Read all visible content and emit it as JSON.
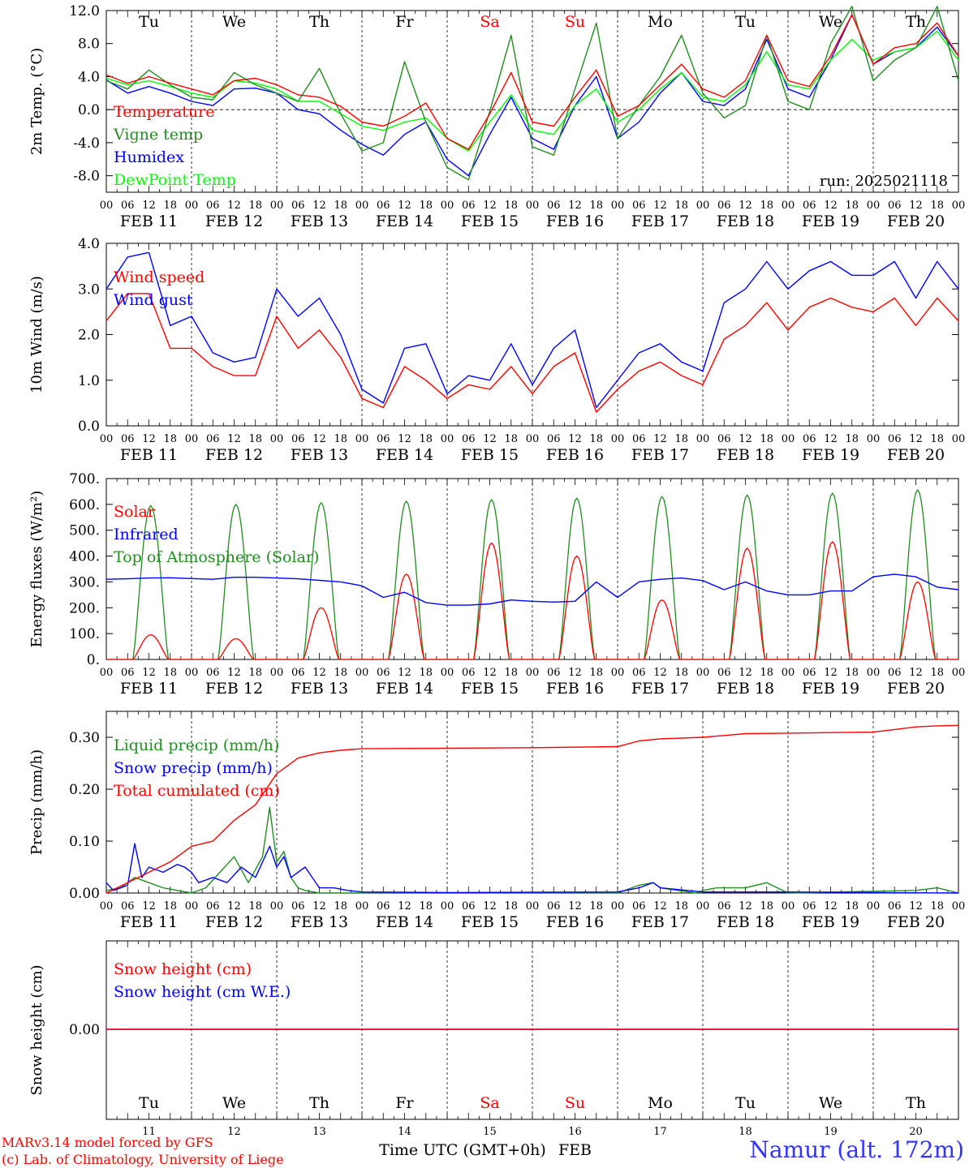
{
  "footer": {
    "model_line": "MARv3.14 model forced by GFS",
    "credit_line": "(c) Lab. of Climatology, University of Liege",
    "time_axis_label": "Time UTC (GMT+0h)",
    "month_label": "FEB",
    "station": "Namur (alt. 172m)"
  },
  "colors": {
    "red": "#ff0000",
    "darkgreen": "#228b22",
    "blue": "#0000ff",
    "lightgreen": "#00ff00",
    "weekend": "#ff0000",
    "text": "#000000",
    "station": "#3333ff"
  },
  "days": {
    "weekday_labels": [
      "Tu",
      "We",
      "Th",
      "Fr",
      "Sa",
      "Su",
      "Mo",
      "Tu",
      "We",
      "Th"
    ],
    "weekend_days": [
      "Sa",
      "Su"
    ],
    "date_labels": [
      "FEB 11",
      "FEB 12",
      "FEB 13",
      "FEB 14",
      "FEB 15",
      "FEB 16",
      "FEB 17",
      "FEB 18",
      "FEB 19",
      "FEB 20"
    ],
    "day_numbers": [
      "11",
      "12",
      "13",
      "14",
      "15",
      "16",
      "17",
      "18",
      "19",
      "20"
    ],
    "hour_ticks": [
      "00",
      "06",
      "12",
      "18"
    ],
    "final_hour_tick": "00"
  },
  "chart_data": [
    {
      "type": "line",
      "ylabel": "2m Temp. (°C)",
      "ylim": [
        -10,
        12
      ],
      "yticks": [
        "12.0",
        "8.0",
        "4.0",
        "0.0",
        "-4.0",
        "-8.0"
      ],
      "x_unit": "hours since 2025-02-11 00 UTC",
      "zero_line": true,
      "annotation": "run: 2025021118",
      "grid": false,
      "legend_position": "left",
      "series": [
        {
          "name": "Temperature",
          "color": "red",
          "x": [
            0,
            6,
            12,
            18,
            24,
            30,
            36,
            42,
            48,
            54,
            60,
            66,
            72,
            78,
            84,
            90,
            96,
            102,
            108,
            114,
            120,
            126,
            132,
            138,
            144,
            150,
            156,
            162,
            168,
            174,
            180,
            186,
            192,
            198,
            204,
            210,
            216,
            222,
            228,
            234,
            240
          ],
          "values": [
            4.2,
            3.2,
            4.0,
            3.2,
            2.5,
            1.8,
            3.5,
            3.8,
            3.0,
            1.8,
            1.5,
            0.4,
            -1.5,
            -2.0,
            -0.8,
            0.8,
            -3.5,
            -4.8,
            -0.5,
            4.5,
            -1.5,
            -2.0,
            1.5,
            4.8,
            -0.8,
            0.5,
            3.0,
            5.5,
            2.5,
            1.5,
            3.5,
            9.0,
            3.5,
            2.8,
            6.5,
            11.5,
            5.5,
            7.5,
            8.0,
            10.5,
            6.5
          ]
        },
        {
          "name": "Vigne temp",
          "color": "darkgreen",
          "x": [
            0,
            6,
            12,
            18,
            24,
            30,
            36,
            42,
            48,
            54,
            60,
            66,
            72,
            78,
            84,
            90,
            96,
            102,
            108,
            114,
            120,
            126,
            132,
            138,
            144,
            150,
            156,
            162,
            168,
            174,
            180,
            186,
            192,
            198,
            204,
            210,
            216,
            222,
            228,
            234,
            240
          ],
          "values": [
            3.5,
            2.5,
            4.8,
            3.0,
            1.5,
            1.2,
            4.5,
            3.0,
            2.0,
            1.0,
            5.0,
            -0.5,
            -5.0,
            -4.0,
            5.8,
            -1.5,
            -7.0,
            -8.5,
            -0.2,
            9.0,
            -4.5,
            -5.5,
            2.5,
            10.5,
            -3.5,
            0.5,
            4.0,
            9.0,
            2.0,
            -1.0,
            0.5,
            9.0,
            1.0,
            0.0,
            8.0,
            12.5,
            3.5,
            6.0,
            7.5,
            12.5,
            3.5
          ]
        },
        {
          "name": "Humidex",
          "color": "blue",
          "x": [
            0,
            6,
            12,
            18,
            24,
            30,
            36,
            42,
            48,
            54,
            60,
            66,
            72,
            78,
            84,
            90,
            96,
            102,
            108,
            114,
            120,
            126,
            132,
            138,
            144,
            150,
            156,
            162,
            168,
            174,
            180,
            186,
            192,
            198,
            204,
            210,
            216,
            222,
            228,
            234,
            240
          ],
          "values": [
            3.6,
            2.0,
            2.8,
            2.0,
            1.0,
            0.5,
            2.5,
            2.6,
            2.0,
            0.0,
            -0.5,
            -2.5,
            -4.2,
            -5.5,
            -3.0,
            -1.5,
            -6.0,
            -8.0,
            -3.0,
            1.5,
            -3.5,
            -4.8,
            0.5,
            4.0,
            -3.5,
            -1.5,
            2.0,
            4.5,
            1.0,
            0.5,
            2.5,
            8.5,
            2.5,
            1.5,
            6.0,
            11.5,
            5.5,
            7.0,
            7.5,
            10.0,
            6.5
          ]
        },
        {
          "name": "DewPoint Temp",
          "color": "lightgreen",
          "x": [
            0,
            6,
            12,
            18,
            24,
            30,
            36,
            42,
            48,
            54,
            60,
            66,
            72,
            78,
            84,
            90,
            96,
            102,
            108,
            114,
            120,
            126,
            132,
            138,
            144,
            150,
            156,
            162,
            168,
            174,
            180,
            186,
            192,
            198,
            204,
            210,
            216,
            222,
            228,
            234,
            240
          ],
          "values": [
            3.8,
            3.0,
            3.5,
            2.8,
            2.0,
            1.5,
            3.5,
            3.2,
            2.5,
            1.0,
            1.0,
            -0.5,
            -2.0,
            -2.5,
            -1.5,
            -1.0,
            -3.5,
            -5.0,
            -1.5,
            1.8,
            -2.5,
            -3.0,
            0.5,
            2.5,
            -1.5,
            0.0,
            2.5,
            4.5,
            1.5,
            1.0,
            3.0,
            7.0,
            3.0,
            2.5,
            6.0,
            8.5,
            6.0,
            7.0,
            7.5,
            9.5,
            6.0
          ]
        }
      ]
    },
    {
      "type": "line",
      "ylabel": "10m Wind (m/s)",
      "ylim": [
        0,
        4
      ],
      "yticks": [
        "4.0",
        "3.0",
        "2.0",
        "1.0",
        "0.0"
      ],
      "x_unit": "hours since 2025-02-11 00 UTC",
      "grid": false,
      "legend_position": "left",
      "series": [
        {
          "name": "Wind speed",
          "color": "red",
          "x": [
            0,
            6,
            12,
            18,
            24,
            30,
            36,
            42,
            48,
            54,
            60,
            66,
            72,
            78,
            84,
            90,
            96,
            102,
            108,
            114,
            120,
            126,
            132,
            138,
            144,
            150,
            156,
            162,
            168,
            174,
            180,
            186,
            192,
            198,
            204,
            210,
            216,
            222,
            228,
            234,
            240
          ],
          "values": [
            2.3,
            2.9,
            2.9,
            1.7,
            1.7,
            1.3,
            1.1,
            1.1,
            2.4,
            1.7,
            2.1,
            1.5,
            0.6,
            0.4,
            1.3,
            1.0,
            0.6,
            0.9,
            0.8,
            1.3,
            0.7,
            1.3,
            1.6,
            0.3,
            0.8,
            1.2,
            1.4,
            1.1,
            0.9,
            1.9,
            2.2,
            2.7,
            2.1,
            2.6,
            2.8,
            2.6,
            2.5,
            2.8,
            2.2,
            2.8,
            2.3
          ]
        },
        {
          "name": "Wind gust",
          "color": "blue",
          "x": [
            0,
            6,
            12,
            18,
            24,
            30,
            36,
            42,
            48,
            54,
            60,
            66,
            72,
            78,
            84,
            90,
            96,
            102,
            108,
            114,
            120,
            126,
            132,
            138,
            144,
            150,
            156,
            162,
            168,
            174,
            180,
            186,
            192,
            198,
            204,
            210,
            216,
            222,
            228,
            234,
            240
          ],
          "values": [
            3.0,
            3.7,
            3.8,
            2.2,
            2.4,
            1.6,
            1.4,
            1.5,
            3.0,
            2.4,
            2.8,
            2.0,
            0.8,
            0.5,
            1.7,
            1.8,
            0.7,
            1.1,
            1.0,
            1.8,
            0.9,
            1.7,
            2.1,
            0.4,
            1.0,
            1.6,
            1.8,
            1.4,
            1.2,
            2.7,
            3.0,
            3.6,
            3.0,
            3.4,
            3.6,
            3.3,
            3.3,
            3.6,
            2.8,
            3.6,
            3.0
          ]
        }
      ]
    },
    {
      "type": "line",
      "ylabel": "Energy fluxes (W/m²)",
      "ylim": [
        0,
        700
      ],
      "yticks": [
        "700.",
        "600.",
        "500.",
        "400.",
        "300.",
        "200.",
        "100.",
        "0."
      ],
      "x_unit": "hours since 2025-02-11 00 UTC",
      "grid": false,
      "legend_position": "left",
      "solar_model": {
        "sunrise_hour": 7.5,
        "sunset_hour": 17.5,
        "toa_peak_by_day": [
          595,
          600,
          606,
          612,
          618,
          624,
          630,
          636,
          643,
          656
        ],
        "solar_peak_by_day": [
          95,
          80,
          200,
          330,
          450,
          400,
          230,
          430,
          455,
          300
        ]
      },
      "series": [
        {
          "name": "Solar",
          "color": "red",
          "derived_from": "solar_model.solar_peak_by_day"
        },
        {
          "name": "Infrared",
          "color": "blue",
          "x": [
            0,
            6,
            12,
            18,
            24,
            30,
            36,
            42,
            48,
            54,
            60,
            66,
            72,
            78,
            84,
            90,
            96,
            102,
            108,
            114,
            120,
            126,
            132,
            138,
            144,
            150,
            156,
            162,
            168,
            174,
            180,
            186,
            192,
            198,
            204,
            210,
            216,
            222,
            228,
            234,
            240
          ],
          "values": [
            310,
            312,
            315,
            316,
            313,
            310,
            318,
            318,
            315,
            312,
            306,
            300,
            285,
            240,
            260,
            220,
            210,
            210,
            215,
            230,
            225,
            222,
            225,
            300,
            240,
            300,
            310,
            315,
            305,
            270,
            300,
            265,
            250,
            250,
            265,
            265,
            320,
            330,
            320,
            280,
            270
          ]
        },
        {
          "name": "Top of Atmosphere (Solar)",
          "color": "darkgreen",
          "derived_from": "solar_model.toa_peak_by_day"
        }
      ]
    },
    {
      "type": "line",
      "ylabel": "Precip (mm/h)",
      "ylim": [
        0,
        0.35
      ],
      "yticks": [
        "0.30",
        "0.20",
        "0.10",
        "0.00"
      ],
      "x_unit": "hours since 2025-02-11 00 UTC",
      "grid": false,
      "legend_position": "left",
      "series": [
        {
          "name": "Liquid precip (mm/h)",
          "color": "darkgreen",
          "x": [
            0,
            4,
            8,
            12,
            16,
            20,
            24,
            28,
            32,
            36,
            40,
            44,
            46,
            48,
            50,
            52,
            54,
            56,
            60,
            64,
            68,
            72,
            96,
            144,
            150,
            154,
            156,
            166,
            168,
            172,
            180,
            186,
            192,
            228,
            234,
            240
          ],
          "values": [
            0.005,
            0.01,
            0.03,
            0.02,
            0.01,
            0.005,
            0.0,
            0.01,
            0.04,
            0.07,
            0.02,
            0.07,
            0.165,
            0.06,
            0.08,
            0.03,
            0.01,
            0.005,
            0.0,
            0.0,
            0.0,
            0.0,
            0.0,
            0.0,
            0.015,
            0.02,
            0.01,
            0.0,
            0.005,
            0.01,
            0.01,
            0.02,
            0.0,
            0.005,
            0.01,
            0.0
          ]
        },
        {
          "name": "Snow precip (mm/h)",
          "color": "blue",
          "x": [
            0,
            2,
            6,
            8,
            10,
            12,
            16,
            20,
            22,
            24,
            26,
            30,
            34,
            38,
            42,
            46,
            48,
            50,
            52,
            56,
            60,
            64,
            68,
            72,
            96,
            144,
            150,
            154,
            156,
            168,
            180,
            192,
            240
          ],
          "values": [
            0.02,
            0.005,
            0.015,
            0.095,
            0.03,
            0.05,
            0.04,
            0.055,
            0.05,
            0.04,
            0.02,
            0.03,
            0.02,
            0.05,
            0.03,
            0.09,
            0.05,
            0.07,
            0.03,
            0.05,
            0.01,
            0.01,
            0.005,
            0.002,
            0.001,
            0.002,
            0.01,
            0.02,
            0.01,
            0.002,
            0.002,
            0.002,
            0.0
          ]
        },
        {
          "name": "Total cumulated (cm)",
          "color": "red",
          "x": [
            0,
            6,
            12,
            18,
            24,
            30,
            36,
            42,
            48,
            54,
            60,
            66,
            72,
            96,
            120,
            144,
            150,
            156,
            168,
            180,
            192,
            216,
            222,
            228,
            234,
            240
          ],
          "values": [
            0.0,
            0.02,
            0.04,
            0.06,
            0.09,
            0.1,
            0.14,
            0.17,
            0.23,
            0.26,
            0.27,
            0.275,
            0.278,
            0.279,
            0.28,
            0.282,
            0.293,
            0.297,
            0.3,
            0.307,
            0.308,
            0.31,
            0.315,
            0.32,
            0.322,
            0.323
          ]
        }
      ]
    },
    {
      "type": "line",
      "ylabel": "Snow height (cm)",
      "yticks": [
        "0.00"
      ],
      "x_unit": "hours since 2025-02-11 00 UTC",
      "grid": false,
      "legend_position": "left",
      "series": [
        {
          "name": "Snow height (cm)",
          "color": "red",
          "x": [
            0,
            240
          ],
          "values": [
            0,
            0
          ]
        },
        {
          "name": "Snow height (cm W.E.)",
          "color": "blue",
          "x": [
            0,
            240
          ],
          "values": [
            0,
            0
          ]
        }
      ]
    }
  ]
}
